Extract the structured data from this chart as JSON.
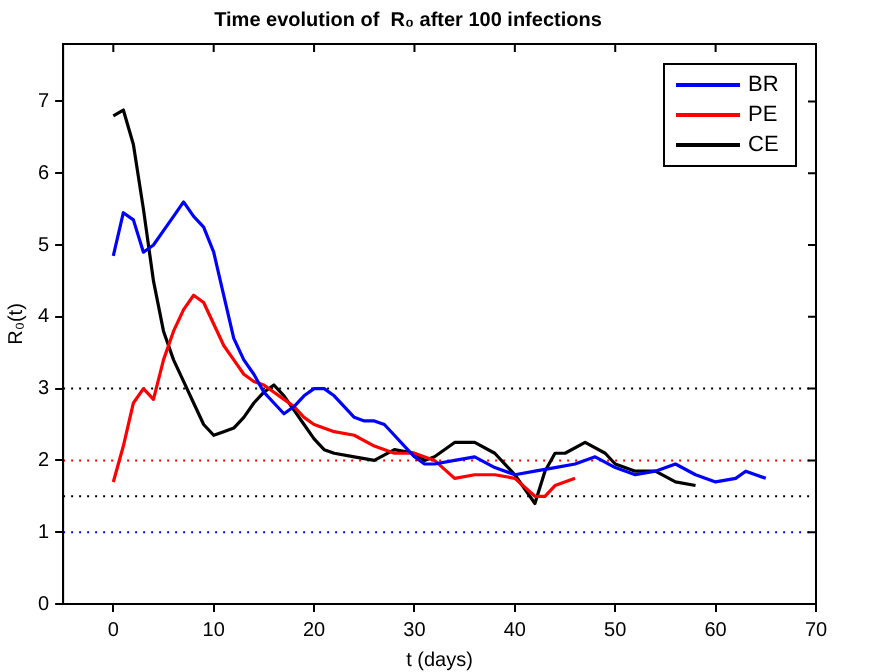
{
  "chart_data": {
    "type": "line",
    "title": "Time evolution of  R₀ after 100 infections",
    "xlabel": "t (days)",
    "ylabel": "R₀(t)",
    "xlim": [
      -5,
      70
    ],
    "xticks": [
      0,
      10,
      20,
      30,
      40,
      50,
      60,
      70
    ],
    "ylim": [
      0,
      7.8
    ],
    "yticks": [
      0,
      1,
      2,
      3,
      4,
      5,
      6,
      7
    ],
    "grid": false,
    "legend": "top right",
    "marker": "none",
    "line_style": "solid",
    "series": [
      {
        "name": "BR",
        "color": "#0000ff",
        "x": [
          0,
          1,
          2,
          3,
          4,
          5,
          6,
          7,
          8,
          9,
          10,
          11,
          12,
          13,
          14,
          15,
          16,
          17,
          18,
          19,
          20,
          21,
          22,
          23,
          24,
          25,
          26,
          27,
          28,
          29,
          30,
          31,
          32,
          34,
          36,
          38,
          40,
          42,
          44,
          46,
          48,
          50,
          52,
          54,
          56,
          58,
          60,
          62,
          63,
          65
        ],
        "values": [
          4.85,
          5.45,
          5.35,
          4.9,
          5.0,
          5.2,
          5.4,
          5.6,
          5.4,
          5.25,
          4.9,
          4.3,
          3.7,
          3.4,
          3.2,
          2.95,
          2.8,
          2.65,
          2.75,
          2.9,
          3.0,
          3.0,
          2.9,
          2.75,
          2.6,
          2.55,
          2.55,
          2.5,
          2.35,
          2.2,
          2.05,
          1.95,
          1.95,
          2.0,
          2.05,
          1.9,
          1.8,
          1.85,
          1.9,
          1.95,
          2.05,
          1.9,
          1.8,
          1.85,
          1.95,
          1.8,
          1.7,
          1.75,
          1.85,
          1.75
        ]
      },
      {
        "name": "PE",
        "color": "#ff0000",
        "x": [
          0,
          1,
          2,
          3,
          4,
          5,
          6,
          7,
          8,
          9,
          10,
          11,
          12,
          13,
          14,
          15,
          16,
          17,
          18,
          19,
          20,
          22,
          24,
          26,
          28,
          30,
          32,
          34,
          36,
          38,
          40,
          42,
          43,
          44,
          46
        ],
        "values": [
          1.7,
          2.2,
          2.8,
          3.0,
          2.85,
          3.4,
          3.8,
          4.1,
          4.3,
          4.2,
          3.9,
          3.6,
          3.4,
          3.2,
          3.1,
          3.05,
          2.95,
          2.85,
          2.75,
          2.6,
          2.5,
          2.4,
          2.35,
          2.2,
          2.1,
          2.1,
          2.0,
          1.75,
          1.8,
          1.8,
          1.75,
          1.5,
          1.5,
          1.65,
          1.75
        ]
      },
      {
        "name": "CE",
        "color": "#000000",
        "x": [
          0,
          1,
          2,
          3,
          4,
          5,
          6,
          7,
          8,
          9,
          10,
          11,
          12,
          13,
          14,
          15,
          16,
          17,
          18,
          19,
          20,
          21,
          22,
          24,
          26,
          28,
          30,
          31,
          32,
          34,
          36,
          38,
          40,
          42,
          43,
          44,
          45,
          47,
          49,
          50,
          52,
          54,
          56,
          58
        ],
        "values": [
          6.8,
          6.88,
          6.4,
          5.5,
          4.5,
          3.8,
          3.4,
          3.1,
          2.8,
          2.5,
          2.35,
          2.4,
          2.45,
          2.6,
          2.8,
          2.95,
          3.05,
          2.9,
          2.7,
          2.5,
          2.3,
          2.15,
          2.1,
          2.05,
          2.0,
          2.15,
          2.1,
          2.0,
          2.05,
          2.25,
          2.25,
          2.1,
          1.8,
          1.4,
          1.85,
          2.1,
          2.1,
          2.25,
          2.1,
          1.95,
          1.85,
          1.85,
          1.7,
          1.65
        ]
      }
    ],
    "ref_lines": [
      {
        "axis": "y",
        "value": 3,
        "color": "#000000",
        "line_style": "dotted"
      },
      {
        "axis": "y",
        "value": 2,
        "color": "#ff0000",
        "line_style": "dotted"
      },
      {
        "axis": "y",
        "value": 1.5,
        "color": "#000000",
        "line_style": "dotted"
      },
      {
        "axis": "y",
        "value": 1,
        "color": "#0000ff",
        "line_style": "dotted"
      }
    ]
  }
}
